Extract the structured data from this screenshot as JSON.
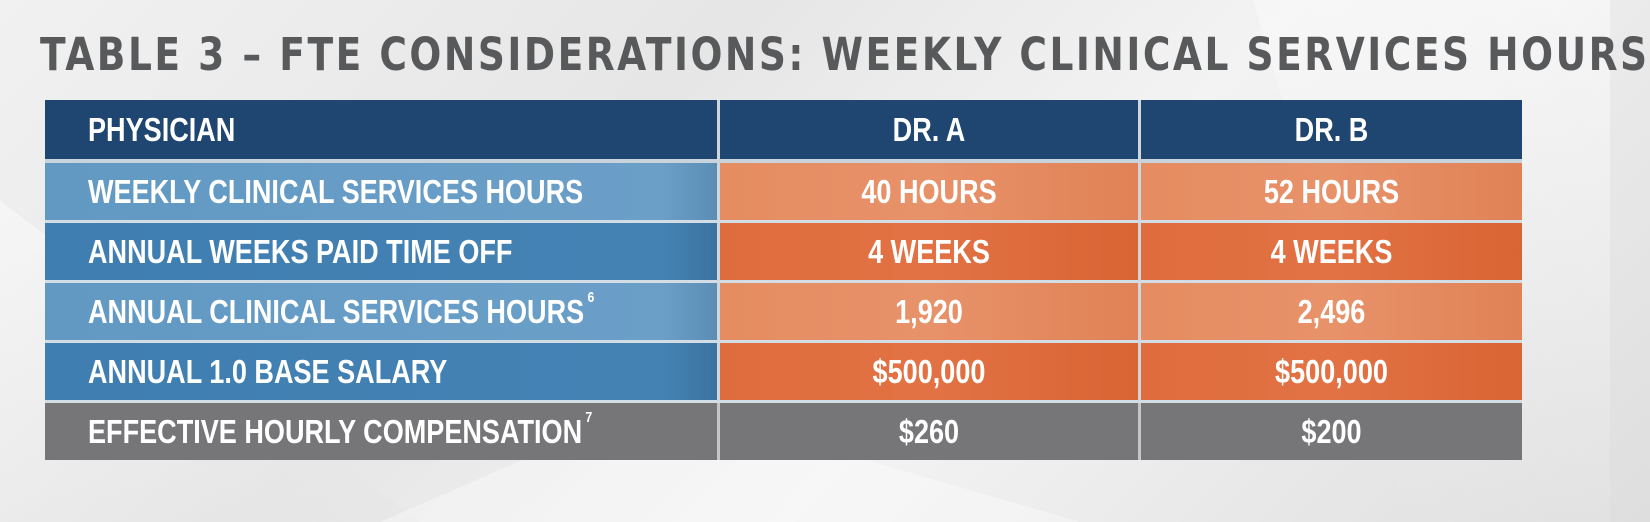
{
  "title": "TABLE 3 – FTE CONSIDERATIONS: WEEKLY CLINICAL SERVICES HOURS",
  "table": {
    "headers": [
      "PHYSICIAN",
      "DR. A",
      "DR. B"
    ],
    "rows": [
      {
        "label": "WEEKLY CLINICAL SERVICES HOURS",
        "sup": "",
        "values": [
          "40 HOURS",
          "52 HOURS"
        ]
      },
      {
        "label": "ANNUAL WEEKS PAID TIME OFF",
        "sup": "",
        "values": [
          "4 WEEKS",
          "4 WEEKS"
        ]
      },
      {
        "label": "ANNUAL CLINICAL SERVICES HOURS",
        "sup": "6",
        "values": [
          "1,920",
          "2,496"
        ]
      },
      {
        "label": "ANNUAL 1.0 BASE SALARY",
        "sup": "",
        "values": [
          "$500,000",
          "$500,000"
        ]
      },
      {
        "label": "EFFECTIVE HOURLY COMPENSATION",
        "sup": "7",
        "values": [
          "$260",
          "$200"
        ]
      }
    ]
  },
  "colors": {
    "header": "#1f4670",
    "label_light": "#6b9fc8",
    "label_dark": "#4582b4",
    "value_light": "#e8926a",
    "value_dark": "#e27244",
    "total_row": "#767679",
    "title_text": "#58595b"
  }
}
